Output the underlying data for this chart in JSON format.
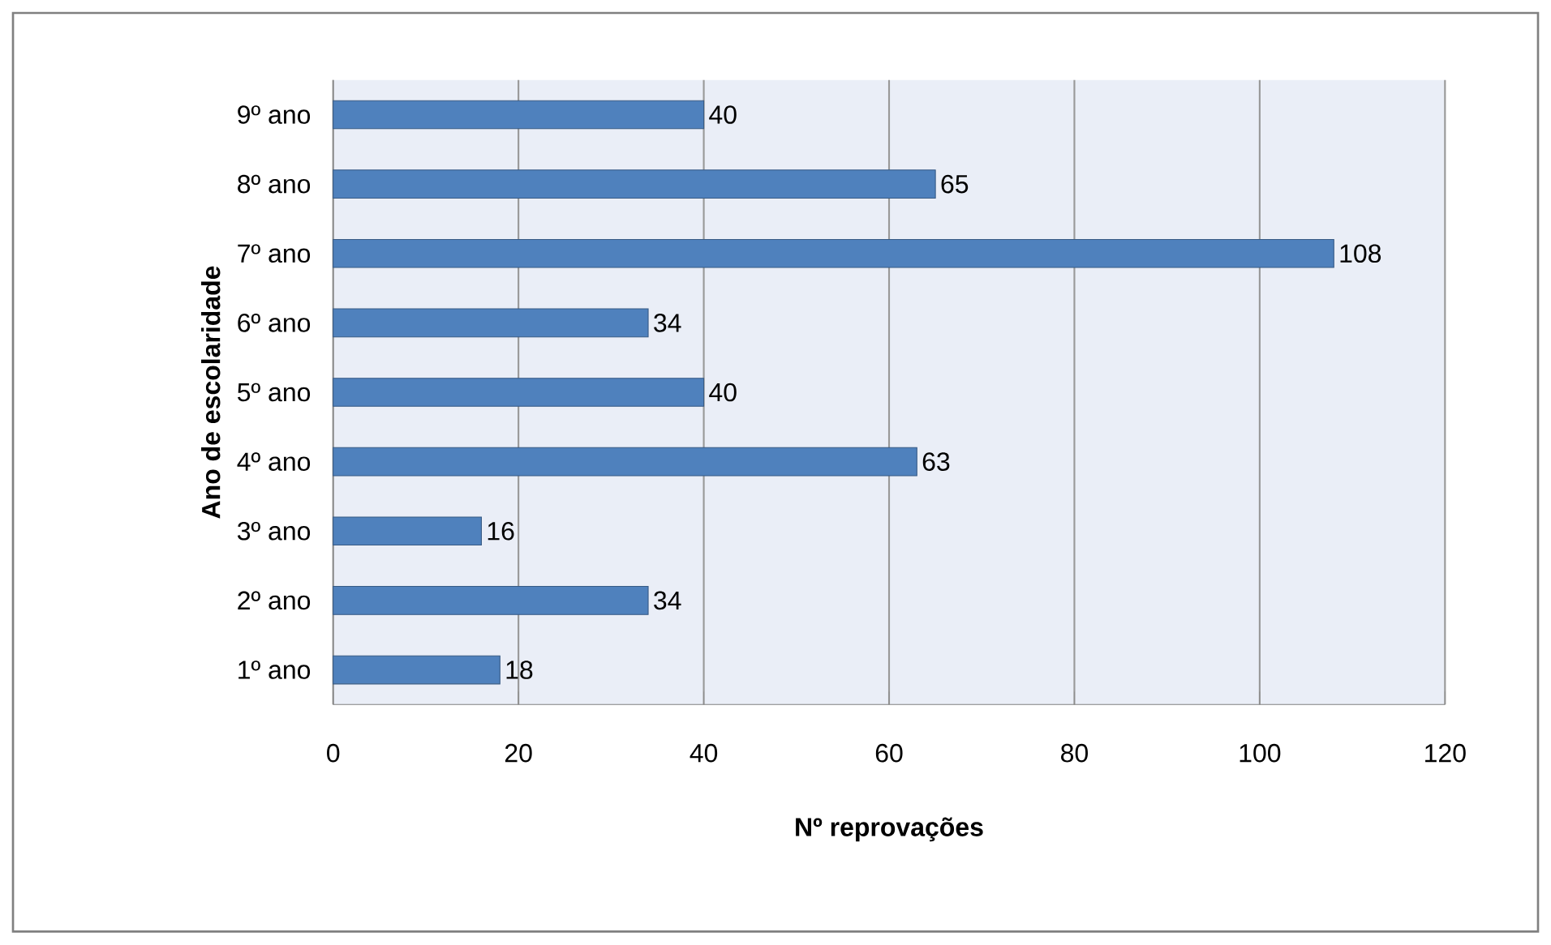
{
  "chart_data": {
    "type": "bar",
    "orientation": "horizontal",
    "xlabel": "Nº reprovações",
    "ylabel": "Ano de escolaridade",
    "categories": [
      "9º ano",
      "8º ano",
      "7º ano",
      "6º ano",
      "5º ano",
      "4º ano",
      "3º ano",
      "2º ano",
      "1º ano"
    ],
    "values": [
      40,
      65,
      108,
      34,
      40,
      63,
      16,
      34,
      18
    ],
    "color": "#4f81bd",
    "xlim": [
      0,
      120
    ],
    "xticks": [
      0,
      20,
      40,
      60,
      80,
      100,
      120
    ],
    "grid": "x",
    "data_labels": true
  }
}
